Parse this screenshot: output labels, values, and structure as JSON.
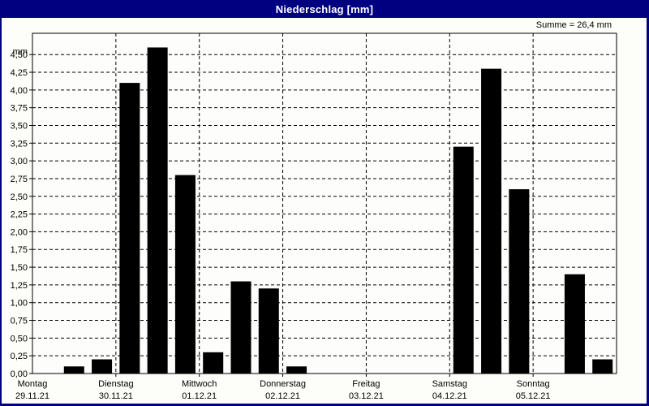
{
  "window": {
    "title": "Niederschlag [mm]"
  },
  "summary": {
    "sum_label": "Summe = 26,4 mm"
  },
  "colors": {
    "titlebar": "#000080",
    "window_border": "#000080",
    "bar": "#000000",
    "grid": "#000000",
    "frame": "#000000",
    "plot_background": "#fdfdfb"
  },
  "chart_data": {
    "type": "bar",
    "title": "Niederschlag [mm]",
    "unit_label": "mm",
    "sum_label": "Summe = 26,4 mm",
    "ylabel": "mm",
    "ylim": [
      0,
      4.8
    ],
    "ytick_step": 0.25,
    "grid": "dashed",
    "legend": "none",
    "bars_per_day": 3,
    "ytick_labels": [
      "0,00",
      "0,25",
      "0,50",
      "0,75",
      "1,00",
      "1,25",
      "1,50",
      "1,75",
      "2,00",
      "2,25",
      "2,50",
      "2,75",
      "3,00",
      "3,25",
      "3,50",
      "3,75",
      "4,00",
      "4,25",
      "4,50"
    ],
    "top_gridline_label": "mm",
    "days": [
      {
        "weekday": "Montag",
        "date": "29.11.21",
        "values": [
          0,
          0.1,
          0.2
        ]
      },
      {
        "weekday": "Dienstag",
        "date": "30.11.21",
        "values": [
          4.1,
          4.6,
          2.8
        ]
      },
      {
        "weekday": "Mittwoch",
        "date": "01.12.21",
        "values": [
          0.3,
          1.3,
          1.2
        ]
      },
      {
        "weekday": "Donnerstag",
        "date": "02.12.21",
        "values": [
          0.1,
          0,
          0
        ]
      },
      {
        "weekday": "Freitag",
        "date": "03.12.21",
        "values": [
          0,
          0,
          0
        ]
      },
      {
        "weekday": "Samstag",
        "date": "04.12.21",
        "values": [
          3.2,
          4.3,
          2.6
        ]
      },
      {
        "weekday": "Sonntag",
        "date": "05.12.21",
        "values": [
          0,
          1.4,
          0.2
        ]
      }
    ]
  }
}
